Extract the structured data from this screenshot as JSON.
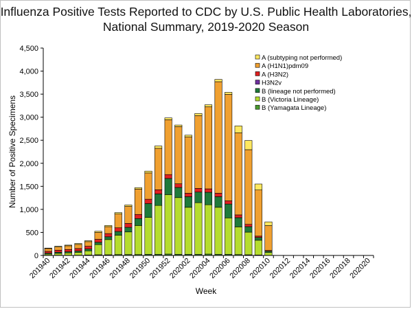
{
  "chart_data": {
    "type": "bar",
    "stacked": true,
    "title": "Influenza Positive Tests Reported to CDC by U.S. Public Health Laboratories,",
    "subtitle": "National Summary, 2019-2020 Season",
    "xlabel": "Week",
    "ylabel": "Number of Positive Specimens",
    "ylim": [
      0,
      4500
    ],
    "yticks": [
      0,
      500,
      1000,
      1500,
      2000,
      2500,
      3000,
      3500,
      4000,
      4500
    ],
    "ytick_labels": [
      "0",
      "500",
      "1,000",
      "1,500",
      "2,000",
      "2,500",
      "3,000",
      "3,500",
      "4,000",
      "4,500"
    ],
    "grid": false,
    "legend_position": "top-right",
    "categories": [
      "201940",
      "201941",
      "201942",
      "201943",
      "201944",
      "201945",
      "201946",
      "201947",
      "201948",
      "201949",
      "201950",
      "201951",
      "201952",
      "202001",
      "202002",
      "202003",
      "202004",
      "202005",
      "202006",
      "202007",
      "202008",
      "202009",
      "202010",
      "202011",
      "202012",
      "202013",
      "202014",
      "202015",
      "202016",
      "202017",
      "202018",
      "202019",
      "202020"
    ],
    "x_tick_labels": [
      "201940",
      "201942",
      "201944",
      "201946",
      "201948",
      "201950",
      "201952",
      "202002",
      "202004",
      "202006",
      "202008",
      "202010",
      "202012",
      "202014",
      "202016",
      "202018",
      "202020"
    ],
    "series": [
      {
        "name": "B (Yamagata Lineage)",
        "color": "#4a9a2e",
        "values": [
          5,
          5,
          5,
          5,
          10,
          15,
          15,
          20,
          20,
          20,
          25,
          25,
          30,
          25,
          25,
          25,
          30,
          25,
          25,
          20,
          15,
          10,
          3,
          0,
          0,
          0,
          0,
          0,
          0,
          0,
          0,
          0,
          0
        ]
      },
      {
        "name": "B (Victoria Lineage)",
        "color": "#b5dc2e",
        "values": [
          25,
          40,
          50,
          60,
          90,
          220,
          330,
          420,
          490,
          630,
          800,
          1060,
          1290,
          1230,
          1020,
          1120,
          1070,
          1020,
          790,
          600,
          490,
          320,
          60,
          0,
          0,
          0,
          0,
          0,
          0,
          0,
          0,
          0,
          0
        ]
      },
      {
        "name": "B (lineage not performed)",
        "color": "#1f7a3a",
        "values": [
          20,
          25,
          25,
          30,
          40,
          50,
          60,
          80,
          100,
          150,
          300,
          250,
          350,
          220,
          230,
          230,
          270,
          230,
          300,
          200,
          120,
          60,
          30,
          0,
          0,
          0,
          0,
          0,
          0,
          0,
          0,
          0,
          0
        ]
      },
      {
        "name": "H3N2v",
        "color": "#7030a0",
        "values": [
          0,
          0,
          0,
          0,
          0,
          0,
          0,
          0,
          0,
          0,
          0,
          0,
          0,
          0,
          0,
          0,
          0,
          0,
          0,
          0,
          0,
          0,
          0,
          0,
          0,
          0,
          0,
          0,
          0,
          0,
          0,
          0,
          0
        ]
      },
      {
        "name": "A (H3N2)",
        "color": "#e02020",
        "values": [
          40,
          45,
          50,
          55,
          60,
          65,
          70,
          80,
          85,
          90,
          95,
          90,
          85,
          80,
          75,
          80,
          75,
          75,
          70,
          60,
          50,
          30,
          15,
          0,
          0,
          0,
          0,
          0,
          0,
          0,
          0,
          0,
          0
        ]
      },
      {
        "name": "A (H1N1)pdm09",
        "color": "#f0a030",
        "values": [
          60,
          70,
          80,
          90,
          100,
          150,
          150,
          300,
          370,
          550,
          570,
          900,
          1190,
          1240,
          1220,
          1580,
          1780,
          2420,
          2310,
          1780,
          1620,
          1000,
          540,
          0,
          0,
          0,
          0,
          0,
          0,
          0,
          0,
          0,
          0
        ]
      },
      {
        "name": "A (subtyping not performed)",
        "color": "#ffe860",
        "values": [
          10,
          15,
          15,
          20,
          20,
          25,
          25,
          30,
          30,
          30,
          40,
          50,
          40,
          35,
          40,
          45,
          45,
          50,
          45,
          150,
          200,
          130,
          80,
          0,
          0,
          0,
          0,
          0,
          0,
          0,
          0,
          0,
          0
        ]
      }
    ]
  }
}
